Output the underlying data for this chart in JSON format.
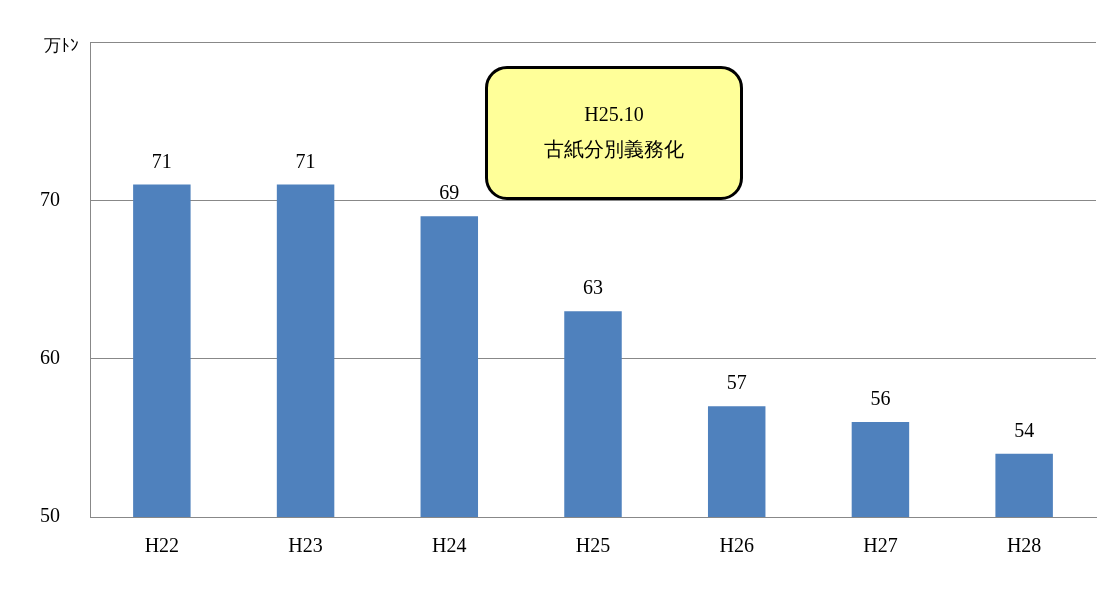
{
  "chart_data": {
    "type": "bar",
    "ylabel": "万ﾄﾝ",
    "categories": [
      "H22",
      "H23",
      "H24",
      "H25",
      "H26",
      "H27",
      "H28"
    ],
    "values": [
      71,
      71,
      69,
      63,
      57,
      56,
      54
    ],
    "color": "#4f81bd",
    "ylim": [
      50,
      80
    ],
    "yticks": [
      50,
      60,
      70,
      {
        "value": 80,
        "label": null
      }
    ],
    "grid": "y",
    "data_labels": true,
    "legend": false,
    "annotations": [
      "H25.10",
      "古紙分別義務化"
    ]
  }
}
